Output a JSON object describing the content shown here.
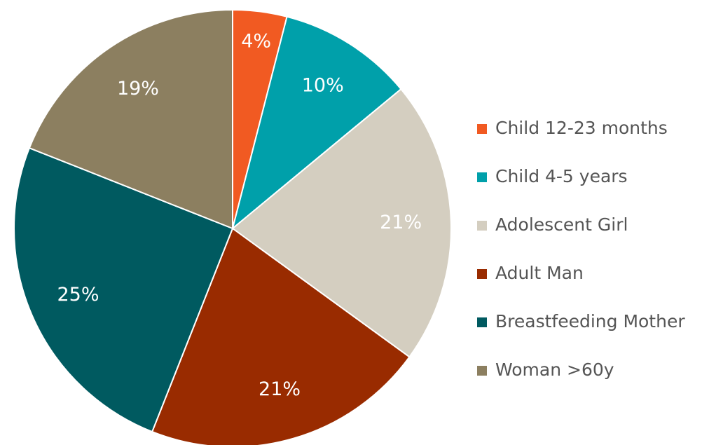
{
  "chart_data": {
    "type": "pie",
    "categories": [
      "Child 12-23 months",
      "Child 4-5 years",
      "Adolescent Girl",
      "Adult Man",
      "Breastfeeding Mother",
      "Woman >60y"
    ],
    "values": [
      4,
      10,
      21,
      21,
      25,
      19
    ],
    "value_labels": [
      "4%",
      "10%",
      "21%",
      "21%",
      "25%",
      "19%"
    ],
    "colors": [
      "#f15a22",
      "#00a0aa",
      "#d4cec0",
      "#992b00",
      "#005a60",
      "#8c7f60"
    ],
    "legend": "right"
  }
}
